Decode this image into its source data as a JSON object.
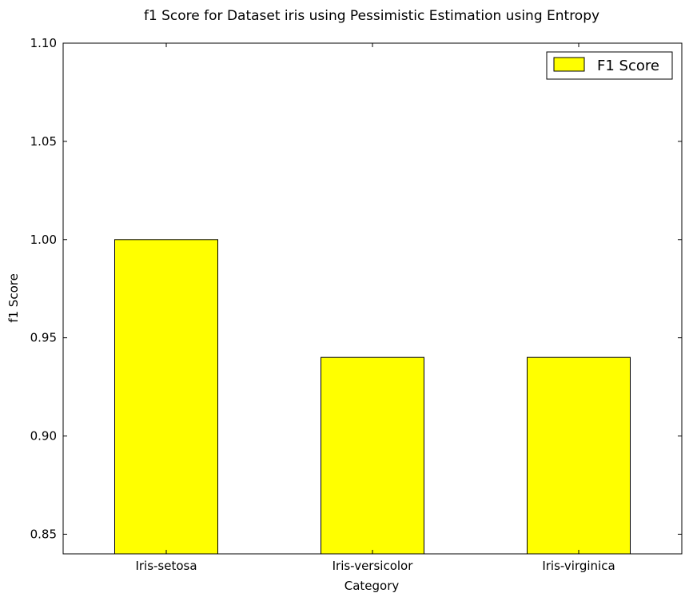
{
  "chart_data": {
    "type": "bar",
    "title": "f1 Score for Dataset iris using Pessimistic Estimation using Entropy",
    "xlabel": "Category",
    "ylabel": "f1 Score",
    "categories": [
      "Iris-setosa",
      "Iris-versicolor",
      "Iris-virginica"
    ],
    "series": [
      {
        "name": "F1 Score",
        "values": [
          1.0,
          0.94,
          0.94
        ],
        "color": "#ffff00"
      }
    ],
    "ylim": [
      0.84,
      1.1
    ],
    "yticks": [
      0.85,
      0.9,
      0.95,
      1.0,
      1.05,
      1.1
    ],
    "ytick_labels": [
      "0.85",
      "0.90",
      "0.95",
      "1.00",
      "1.05",
      "1.10"
    ],
    "grid": false,
    "legend_position": "top-right"
  }
}
